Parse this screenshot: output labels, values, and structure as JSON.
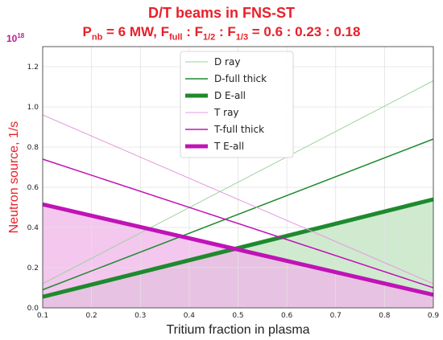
{
  "header": {
    "title": "D/T beams in FNS-ST",
    "subtitle_p": "P",
    "subtitle_p_sub": "nb",
    "subtitle_p_val": " = 6 MW,  F",
    "subtitle_f1_sub": "full",
    "subtitle_sep1": " : F",
    "subtitle_f2_sub": "1/2",
    "subtitle_sep2": " : F",
    "subtitle_f3_sub": "1/3",
    "subtitle_ratio": " = 0.6 : 0.23 : 0.18",
    "scale_base": "10",
    "scale_exp": "18"
  },
  "colors": {
    "green": "#1e8a2e",
    "green_light": "#9fd29f",
    "green_fill": "#bfe3bf",
    "magenta": "#c013b7",
    "magenta_light": "#e79ae0",
    "magenta_fill": "#efb4e8",
    "grid": "#e2e2e2",
    "title": "#e8202a"
  },
  "chart_data": {
    "type": "line",
    "xlabel": "Tritium fraction in plasma",
    "ylabel": "Neutron source, 1/s",
    "xlim": [
      0.1,
      0.9
    ],
    "ylim": [
      0,
      1.3
    ],
    "xticks": [
      "0.1",
      "0.2",
      "0.3",
      "0.4",
      "0.5",
      "0.6",
      "0.7",
      "0.8",
      "0.9"
    ],
    "yticks": [
      "0.0",
      "0.2",
      "0.4",
      "0.6",
      "0.8",
      "1.0",
      "1.2"
    ],
    "grid": true,
    "legend_position": "top-center",
    "series": [
      {
        "name": "D ray",
        "x": [
          0.1,
          0.9
        ],
        "y": [
          0.12,
          1.13
        ],
        "color": "#9fd29f",
        "width": 1
      },
      {
        "name": "D-full thick",
        "x": [
          0.1,
          0.9
        ],
        "y": [
          0.09,
          0.84
        ],
        "color": "#1e8a2e",
        "width": 1.5
      },
      {
        "name": "D E-all",
        "x": [
          0.1,
          0.9
        ],
        "y": [
          0.055,
          0.54
        ],
        "color": "#1e8a2e",
        "width": 5,
        "fill": "#bfe3bf"
      },
      {
        "name": "T ray",
        "x": [
          0.1,
          0.9
        ],
        "y": [
          0.96,
          0.12
        ],
        "color": "#e79ae0",
        "width": 1
      },
      {
        "name": "T-full thick",
        "x": [
          0.1,
          0.9
        ],
        "y": [
          0.74,
          0.1
        ],
        "color": "#c013b7",
        "width": 1.5
      },
      {
        "name": "T E-all",
        "x": [
          0.1,
          0.9
        ],
        "y": [
          0.515,
          0.065
        ],
        "color": "#c013b7",
        "width": 5,
        "fill": "#efb4e8"
      }
    ]
  }
}
